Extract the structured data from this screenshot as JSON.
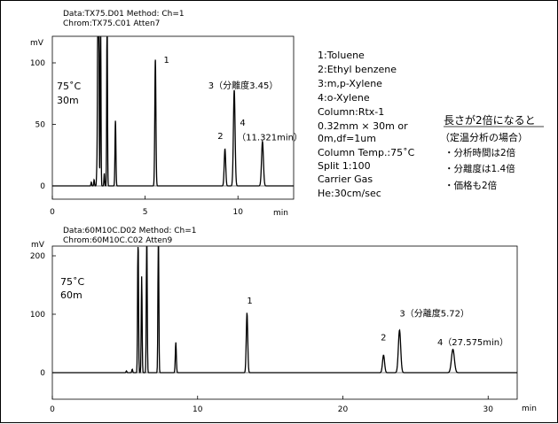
{
  "chart_data": [
    {
      "type": "line",
      "header_line1": "Data:TX75.D01  Method:  Ch=1",
      "header_line2": "Chrom:TX75.C01  Atten7",
      "ylabel": "mV",
      "xlabel": "min",
      "xlim": [
        0,
        13
      ],
      "ylim": [
        0,
        110
      ],
      "x_ticks": [
        0,
        5,
        10
      ],
      "y_ticks": [
        0,
        50,
        100
      ],
      "condition_label_1": "75˚C",
      "condition_label_2": "30m",
      "peaks": [
        {
          "t": 2.1,
          "h": 3,
          "w": 0.02
        },
        {
          "t": 2.25,
          "h": 5,
          "w": 0.02
        },
        {
          "t": 2.4,
          "h": 14,
          "w": 0.02
        },
        {
          "t": 2.45,
          "h": 150,
          "w": 0.02
        },
        {
          "t": 2.5,
          "h": 150,
          "w": 0.02
        },
        {
          "t": 2.6,
          "h": 150,
          "w": 0.02
        },
        {
          "t": 2.8,
          "h": 10,
          "w": 0.02
        },
        {
          "t": 2.95,
          "h": 150,
          "w": 0.02
        },
        {
          "t": 3.4,
          "h": 53,
          "w": 0.025
        },
        {
          "t": 5.55,
          "h": 103,
          "w": 0.03
        },
        {
          "t": 9.3,
          "h": 30,
          "w": 0.04
        },
        {
          "t": 9.8,
          "h": 78,
          "w": 0.045
        },
        {
          "t": 11.321,
          "h": 36,
          "w": 0.05
        }
      ],
      "peak_labels": [
        {
          "text": "1",
          "x": 6.0,
          "y": 100
        },
        {
          "text": "2",
          "x": 8.9,
          "y": 38
        },
        {
          "text": "3（分離度3.45）",
          "x": 8.4,
          "y": 79
        },
        {
          "text": "4",
          "x": 10.1,
          "y": 49
        },
        {
          "text": "（11.321min）",
          "x": 9.95,
          "y": 37
        }
      ]
    },
    {
      "type": "line",
      "header_line1": "Data:60M10C.D02  Method:  Ch=1",
      "header_line2": "Chrom:60M10C.C02  Atten9",
      "ylabel": "mV",
      "xlabel": "min",
      "xlim": [
        0,
        32
      ],
      "ylim": [
        -30,
        210
      ],
      "x_ticks": [
        0,
        10,
        20,
        30
      ],
      "y_ticks": [
        0,
        100,
        200
      ],
      "condition_label_1": "75˚C",
      "condition_label_2": "60m",
      "peaks": [
        {
          "t": 5.1,
          "h": 3,
          "w": 0.03
        },
        {
          "t": 5.5,
          "h": 6,
          "w": 0.03
        },
        {
          "t": 5.9,
          "h": 260,
          "w": 0.03
        },
        {
          "t": 6.15,
          "h": 165,
          "w": 0.03
        },
        {
          "t": 6.5,
          "h": 260,
          "w": 0.03
        },
        {
          "t": 7.3,
          "h": 260,
          "w": 0.03
        },
        {
          "t": 8.5,
          "h": 52,
          "w": 0.035
        },
        {
          "t": 13.4,
          "h": 103,
          "w": 0.05
        },
        {
          "t": 22.8,
          "h": 30,
          "w": 0.07
        },
        {
          "t": 23.9,
          "h": 73,
          "w": 0.08
        },
        {
          "t": 27.575,
          "h": 40,
          "w": 0.1
        }
      ],
      "peak_labels": [
        {
          "text": "1",
          "x": 13.4,
          "y": 118
        },
        {
          "text": "2",
          "x": 22.6,
          "y": 55
        },
        {
          "text": "3（分離度5.72）",
          "x": 23.9,
          "y": 96
        },
        {
          "text": "4（27.575min）",
          "x": 26.5,
          "y": 47
        }
      ]
    }
  ],
  "conditions": [
    "1:Toluene",
    "2:Ethyl benzene",
    "3:m,p-Xylene",
    "4:o-Xylene",
    "Column:Rtx-1",
    "0.32mm × 30m or",
    "0m,df=1um",
    "Column Temp.:75˚C",
    "Split 1:100",
    "Carrier Gas",
    "He:30cm/sec"
  ],
  "notes": {
    "heading": "長さが2倍になると",
    "subheading": "（定温分析の場合）",
    "bullets": [
      "・分析時間は2倍",
      "・分離度は1.4倍",
      "・価格も2倍"
    ]
  }
}
